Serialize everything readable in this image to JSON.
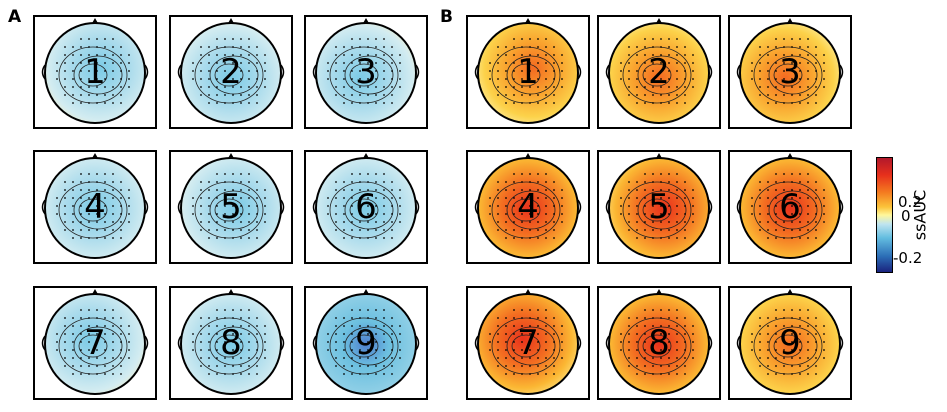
{
  "panels": [
    {
      "letter": "A",
      "maps": [
        "1",
        "2",
        "3",
        "4",
        "5",
        "6",
        "7",
        "8",
        "9"
      ],
      "tone": "negative"
    },
    {
      "letter": "B",
      "maps": [
        "1",
        "2",
        "3",
        "4",
        "5",
        "6",
        "7",
        "8",
        "9"
      ],
      "tone": "positive"
    }
  ],
  "colorbar": {
    "label": "ssAUC",
    "ticks": [
      "0.2",
      "0",
      "-0.2"
    ],
    "colors": [
      "#b2182b",
      "#f47a20",
      "#fff79a",
      "#63bde0",
      "#1a237e"
    ]
  }
}
